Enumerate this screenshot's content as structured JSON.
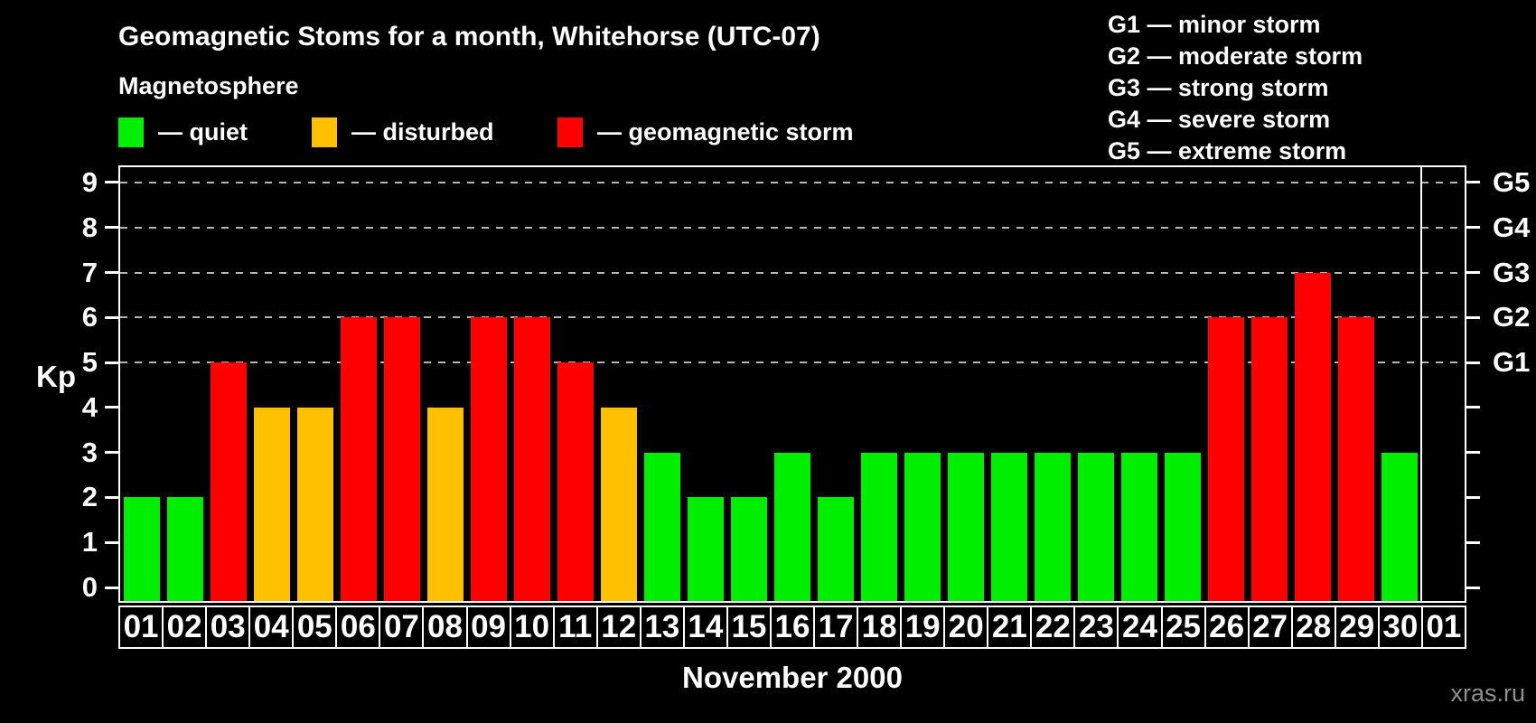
{
  "header": {
    "title": "Geomagnetic Stoms for a month, Whitehorse (UTC-07)",
    "legend_title": "Magnetosphere",
    "legend_items": [
      {
        "key": "quiet",
        "label": "— quiet",
        "color": "#00ee00"
      },
      {
        "key": "disturbed",
        "label": "— disturbed",
        "color": "#ffc000"
      },
      {
        "key": "storm",
        "label": "— geomagnetic storm",
        "color": "#ff0000"
      }
    ],
    "g_scale_legend": [
      "G1 — minor storm",
      "G2 — moderate storm",
      "G3 — strong storm",
      "G4 — severe storm",
      "G5 — extreme storm"
    ]
  },
  "chart_data": {
    "type": "bar",
    "title": "Geomagnetic Stoms for a month, Whitehorse (UTC-07)",
    "xlabel": "November 2000",
    "ylabel": "Kp",
    "ylim": [
      0,
      9
    ],
    "yticks": [
      0,
      1,
      2,
      3,
      4,
      5,
      6,
      7,
      8,
      9
    ],
    "grid": "horizontal dashed lines at Kp 5-9 (storm levels G1-G5)",
    "gridlines_at_kp": [
      5,
      6,
      7,
      8,
      9
    ],
    "right_axis": [
      {
        "label": "G1",
        "kp": 5
      },
      {
        "label": "G2",
        "kp": 6
      },
      {
        "label": "G3",
        "kp": 7
      },
      {
        "label": "G4",
        "kp": 8
      },
      {
        "label": "G5",
        "kp": 9
      }
    ],
    "legend_position": "top-left",
    "categories": [
      "01",
      "02",
      "03",
      "04",
      "05",
      "06",
      "07",
      "08",
      "09",
      "10",
      "11",
      "12",
      "13",
      "14",
      "15",
      "16",
      "17",
      "18",
      "19",
      "20",
      "21",
      "22",
      "23",
      "24",
      "25",
      "26",
      "27",
      "28",
      "29",
      "30",
      "01"
    ],
    "values": [
      2,
      2,
      5,
      4,
      4,
      6,
      6,
      4,
      6,
      6,
      5,
      4,
      3,
      2,
      2,
      3,
      2,
      3,
      3,
      3,
      3,
      3,
      3,
      3,
      3,
      6,
      6,
      7,
      6,
      3,
      null
    ],
    "days": [
      {
        "label": "01",
        "kp": 2,
        "state": "quiet"
      },
      {
        "label": "02",
        "kp": 2,
        "state": "quiet"
      },
      {
        "label": "03",
        "kp": 5,
        "state": "storm"
      },
      {
        "label": "04",
        "kp": 4,
        "state": "disturbed"
      },
      {
        "label": "05",
        "kp": 4,
        "state": "disturbed"
      },
      {
        "label": "06",
        "kp": 6,
        "state": "storm"
      },
      {
        "label": "07",
        "kp": 6,
        "state": "storm"
      },
      {
        "label": "08",
        "kp": 4,
        "state": "disturbed"
      },
      {
        "label": "09",
        "kp": 6,
        "state": "storm"
      },
      {
        "label": "10",
        "kp": 6,
        "state": "storm"
      },
      {
        "label": "11",
        "kp": 5,
        "state": "storm"
      },
      {
        "label": "12",
        "kp": 4,
        "state": "disturbed"
      },
      {
        "label": "13",
        "kp": 3,
        "state": "quiet"
      },
      {
        "label": "14",
        "kp": 2,
        "state": "quiet"
      },
      {
        "label": "15",
        "kp": 2,
        "state": "quiet"
      },
      {
        "label": "16",
        "kp": 3,
        "state": "quiet"
      },
      {
        "label": "17",
        "kp": 2,
        "state": "quiet"
      },
      {
        "label": "18",
        "kp": 3,
        "state": "quiet"
      },
      {
        "label": "19",
        "kp": 3,
        "state": "quiet"
      },
      {
        "label": "20",
        "kp": 3,
        "state": "quiet"
      },
      {
        "label": "21",
        "kp": 3,
        "state": "quiet"
      },
      {
        "label": "22",
        "kp": 3,
        "state": "quiet"
      },
      {
        "label": "23",
        "kp": 3,
        "state": "quiet"
      },
      {
        "label": "24",
        "kp": 3,
        "state": "quiet"
      },
      {
        "label": "25",
        "kp": 3,
        "state": "quiet"
      },
      {
        "label": "26",
        "kp": 6,
        "state": "storm"
      },
      {
        "label": "27",
        "kp": 6,
        "state": "storm"
      },
      {
        "label": "28",
        "kp": 7,
        "state": "storm"
      },
      {
        "label": "29",
        "kp": 6,
        "state": "storm"
      },
      {
        "label": "30",
        "kp": 3,
        "state": "quiet"
      },
      {
        "label": "01",
        "kp": null,
        "state": null,
        "next_month": true
      }
    ]
  },
  "footer": {
    "watermark": "xras.ru"
  },
  "colors": {
    "background": "#000000",
    "text": "#ffffff",
    "axis": "#ffffff",
    "grid": "#b4b4b4",
    "watermark": "#8f8f8f",
    "quiet": "#00ee00",
    "disturbed": "#ffc000",
    "storm": "#ff0000"
  }
}
